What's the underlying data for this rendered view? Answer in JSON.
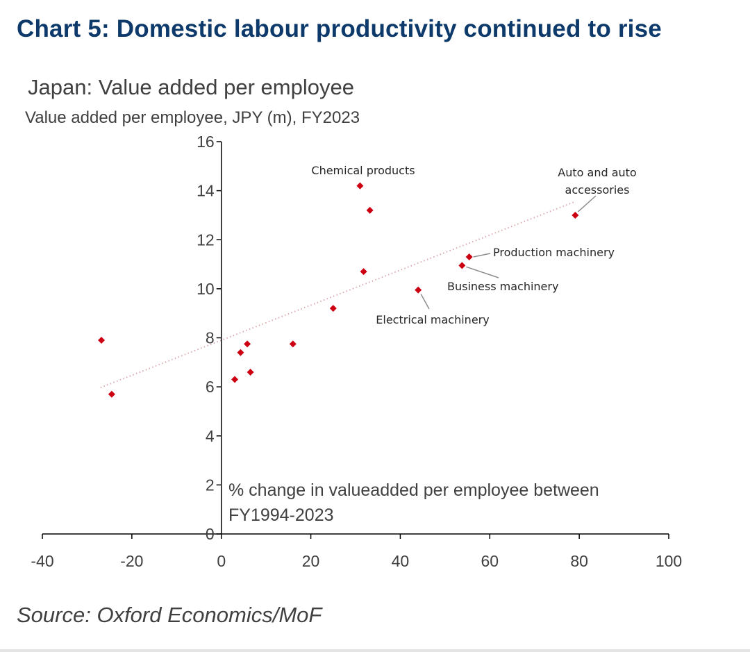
{
  "title": "Chart 5: Domestic labour productivity continued to rise",
  "source": "Source: Oxford Economics/MoF",
  "colors": {
    "title": "#0d3a6b",
    "marker": "#cc0011",
    "trend": "#d9a9ae",
    "axis": "#000000",
    "text": "#404040"
  },
  "chart_data": {
    "type": "scatter",
    "title": "Japan: Value added per employee",
    "ylabel": "Value added per employee, JPY (m), FY2023",
    "xlabel": "% change in valueadded per employee between FY1994-2023",
    "xlim": [
      -40,
      100
    ],
    "ylim": [
      0,
      16
    ],
    "x_ticks": [
      -40,
      -20,
      0,
      20,
      40,
      60,
      80,
      100
    ],
    "y_ticks": [
      0,
      2,
      4,
      6,
      8,
      10,
      12,
      14,
      16
    ],
    "grid": false,
    "legend": "none",
    "points": [
      {
        "x": -26.8,
        "y": 7.9,
        "label": ""
      },
      {
        "x": -24.5,
        "y": 5.7,
        "label": ""
      },
      {
        "x": 3.0,
        "y": 6.3,
        "label": ""
      },
      {
        "x": 4.3,
        "y": 7.4,
        "label": ""
      },
      {
        "x": 5.8,
        "y": 7.75,
        "label": ""
      },
      {
        "x": 6.5,
        "y": 6.6,
        "label": ""
      },
      {
        "x": 16.0,
        "y": 7.75,
        "label": ""
      },
      {
        "x": 25.0,
        "y": 9.2,
        "label": ""
      },
      {
        "x": 31.0,
        "y": 14.2,
        "label": "Chemical products"
      },
      {
        "x": 31.8,
        "y": 10.7,
        "label": ""
      },
      {
        "x": 33.2,
        "y": 13.2,
        "label": ""
      },
      {
        "x": 44.0,
        "y": 9.95,
        "label": "Electrical machinery"
      },
      {
        "x": 53.8,
        "y": 10.95,
        "label": "Business machinery"
      },
      {
        "x": 55.4,
        "y": 11.3,
        "label": "Production machinery"
      },
      {
        "x": 79.1,
        "y": 13.0,
        "label": "Auto and auto accessories"
      }
    ],
    "trendline": {
      "type": "linear",
      "from": {
        "x": -27,
        "y": 5.97
      },
      "to": {
        "x": 79,
        "y": 13.55
      }
    }
  }
}
